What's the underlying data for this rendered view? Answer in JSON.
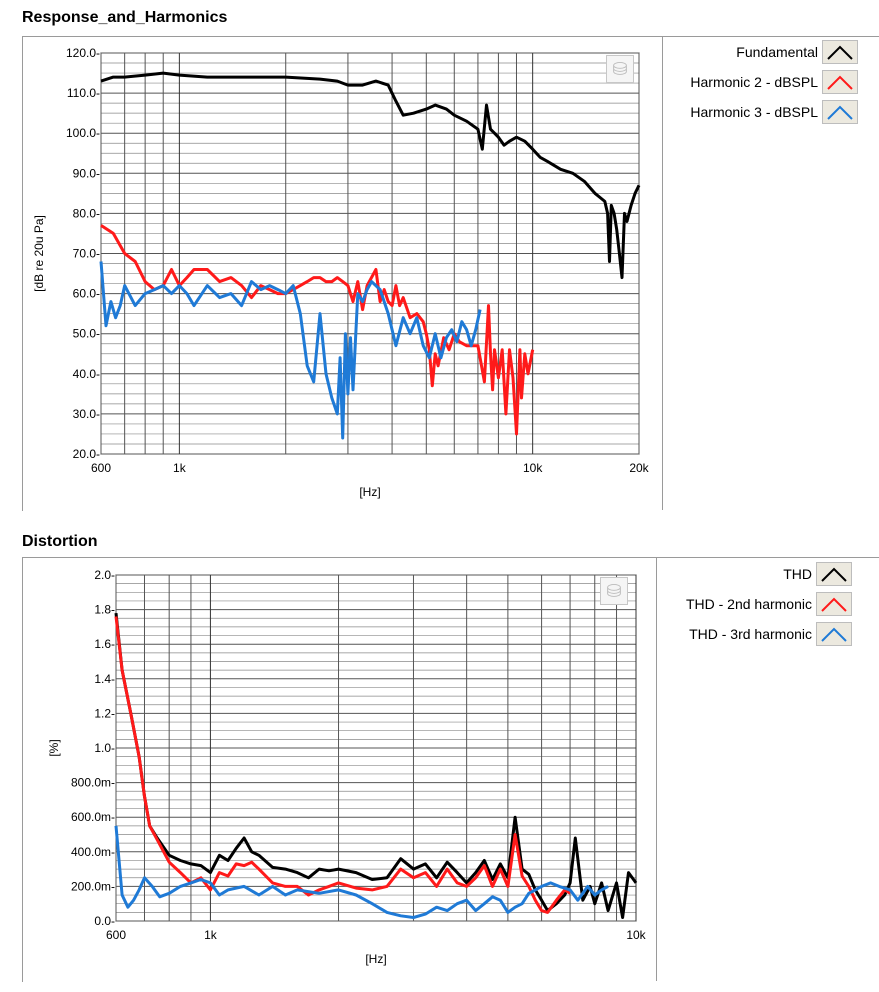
{
  "charts": [
    {
      "title": "Response_and_Harmonics",
      "type": "line",
      "xlabel": "[Hz]",
      "ylabel": "[dB re 20u Pa]",
      "x_scale": "log",
      "xlim": [
        600,
        20000
      ],
      "ylim": [
        20,
        120
      ],
      "x_ticks": [
        600,
        1000,
        10000,
        20000
      ],
      "x_tick_labels": [
        "600",
        "1k",
        "10k",
        "20k"
      ],
      "y_ticks": [
        20,
        30,
        40,
        50,
        60,
        70,
        80,
        90,
        100,
        110,
        120
      ],
      "y_tick_labels": [
        "20.0-",
        "30.0-",
        "40.0-",
        "50.0-",
        "60.0-",
        "70.0-",
        "80.0-",
        "90.0-",
        "100.0-",
        "110.0-",
        "120.0-"
      ],
      "grid": true,
      "legend_position": "right",
      "series": [
        {
          "name": "Fundamental",
          "color": "#000000",
          "x": [
            600,
            650,
            700,
            800,
            900,
            1000,
            1200,
            1500,
            2000,
            2500,
            2800,
            3000,
            3300,
            3600,
            3900,
            4100,
            4300,
            4600,
            5000,
            5300,
            5700,
            6000,
            6500,
            7000,
            7200,
            7400,
            7500,
            7600,
            7800,
            8000,
            8300,
            8600,
            9000,
            9500,
            10000,
            10500,
            11000,
            12000,
            13000,
            14000,
            15000,
            15500,
            16000,
            16300,
            16500,
            16700,
            17000,
            17300,
            17600,
            17900,
            18200,
            18500,
            19000,
            19500,
            20000
          ],
          "y": [
            113,
            114,
            114,
            114.5,
            115,
            114.5,
            114,
            114,
            114,
            113.5,
            113,
            112,
            112,
            113,
            112,
            108,
            104.5,
            105,
            106,
            107,
            106,
            104.5,
            103,
            101,
            96,
            107,
            104,
            101,
            100,
            99,
            97,
            98,
            99,
            98,
            96,
            94,
            93,
            91,
            90,
            88,
            85,
            84,
            83,
            80,
            68,
            82,
            80,
            76,
            70,
            64,
            80,
            78,
            82,
            85,
            87
          ]
        },
        {
          "name": "Harmonic 2 - dBSPL",
          "color": "#ff1a1a",
          "x": [
            600,
            650,
            700,
            750,
            800,
            850,
            900,
            950,
            1000,
            1050,
            1100,
            1200,
            1300,
            1400,
            1500,
            1600,
            1700,
            1800,
            1900,
            2000,
            2100,
            2200,
            2300,
            2400,
            2500,
            2600,
            2700,
            2800,
            2900,
            3000,
            3100,
            3200,
            3300,
            3400,
            3600,
            3700,
            3800,
            3900,
            4000,
            4100,
            4200,
            4300,
            4500,
            4700,
            4900,
            5000,
            5100,
            5200,
            5300,
            5400,
            5600,
            5800,
            6000,
            6200,
            6500,
            7000,
            7300,
            7500,
            7600,
            7700,
            7800,
            8000,
            8200,
            8400,
            8600,
            8800,
            9000,
            9200,
            9300,
            9500,
            9700,
            10000
          ],
          "y": [
            77,
            75,
            70,
            68,
            63,
            61,
            62,
            66,
            62,
            64,
            66,
            66,
            63,
            64,
            62,
            59,
            62,
            61,
            60,
            60,
            61,
            62,
            63,
            64,
            64,
            63,
            63,
            64,
            63,
            62,
            58,
            63,
            56,
            62,
            66,
            58,
            61,
            58,
            57,
            62,
            57,
            59,
            54,
            55,
            53,
            50,
            46,
            37,
            45,
            42,
            49,
            46,
            50,
            48,
            47,
            47,
            38,
            57,
            45,
            36,
            46,
            39,
            46,
            30,
            46,
            39,
            25,
            46,
            34,
            45,
            40,
            46
          ]
        },
        {
          "name": "Harmonic 3 - dBSPL",
          "color": "#1f7ad6",
          "x": [
            600,
            620,
            640,
            660,
            680,
            700,
            750,
            800,
            850,
            900,
            950,
            1000,
            1050,
            1100,
            1200,
            1300,
            1400,
            1500,
            1600,
            1700,
            1800,
            1900,
            2000,
            2100,
            2200,
            2300,
            2400,
            2500,
            2600,
            2700,
            2800,
            2850,
            2900,
            2950,
            3000,
            3050,
            3100,
            3150,
            3200,
            3300,
            3400,
            3500,
            3700,
            3900,
            4100,
            4300,
            4500,
            4700,
            4900,
            5100,
            5300,
            5500,
            5700,
            5900,
            6100,
            6300,
            6500,
            6700,
            6900,
            7100
          ],
          "y": [
            68,
            52,
            58,
            54,
            57,
            62,
            57,
            60,
            61,
            62,
            60,
            62,
            60,
            57,
            62,
            59,
            60,
            57,
            63,
            61,
            62,
            61,
            60,
            62,
            55,
            42,
            38,
            55,
            40,
            34,
            30,
            44,
            24,
            50,
            35,
            49,
            36,
            48,
            60,
            58,
            61,
            63,
            61,
            55,
            47,
            54,
            50,
            54,
            47,
            44,
            50,
            44,
            49,
            51,
            48,
            53,
            51,
            47,
            51,
            56
          ]
        }
      ]
    },
    {
      "title": "Distortion",
      "type": "line",
      "xlabel": "[Hz]",
      "ylabel": "[%]",
      "x_scale": "log",
      "xlim": [
        600,
        10000
      ],
      "ylim": [
        0,
        2.0
      ],
      "x_ticks": [
        600,
        1000,
        10000
      ],
      "x_tick_labels": [
        "600",
        "1k",
        "10k"
      ],
      "y_ticks": [
        0,
        0.2,
        0.4,
        0.6,
        0.8,
        1.0,
        1.2,
        1.4,
        1.6,
        1.8,
        2.0
      ],
      "y_tick_labels": [
        "0.0-",
        "200.0m-",
        "400.0m-",
        "600.0m-",
        "800.0m-",
        "1.0-",
        "1.2-",
        "1.4-",
        "1.6-",
        "1.8-",
        "2.0-"
      ],
      "grid": true,
      "legend_position": "right",
      "series": [
        {
          "name": "THD",
          "color": "#000000",
          "x": [
            600,
            620,
            650,
            680,
            700,
            720,
            750,
            800,
            850,
            900,
            950,
            1000,
            1050,
            1100,
            1150,
            1200,
            1250,
            1300,
            1400,
            1500,
            1600,
            1700,
            1800,
            1900,
            2000,
            2200,
            2400,
            2600,
            2800,
            3000,
            3200,
            3400,
            3600,
            3800,
            4000,
            4200,
            4400,
            4600,
            4800,
            5000,
            5200,
            5400,
            5600,
            5800,
            6000,
            6200,
            6500,
            6800,
            7000,
            7200,
            7500,
            7800,
            8000,
            8300,
            8600,
            9000,
            9300,
            9600,
            10000
          ],
          "y": [
            1.78,
            1.45,
            1.2,
            0.95,
            0.72,
            0.55,
            0.48,
            0.38,
            0.35,
            0.33,
            0.32,
            0.28,
            0.38,
            0.35,
            0.42,
            0.48,
            0.4,
            0.38,
            0.31,
            0.3,
            0.28,
            0.25,
            0.3,
            0.29,
            0.3,
            0.28,
            0.24,
            0.25,
            0.36,
            0.3,
            0.33,
            0.25,
            0.34,
            0.28,
            0.22,
            0.28,
            0.35,
            0.24,
            0.33,
            0.25,
            0.6,
            0.3,
            0.27,
            0.18,
            0.12,
            0.06,
            0.1,
            0.15,
            0.22,
            0.48,
            0.12,
            0.2,
            0.1,
            0.22,
            0.06,
            0.22,
            0.02,
            0.28,
            0.22
          ]
        },
        {
          "name": "THD - 2nd harmonic",
          "color": "#ff1a1a",
          "x": [
            600,
            620,
            650,
            680,
            700,
            720,
            750,
            800,
            850,
            900,
            950,
            1000,
            1050,
            1100,
            1150,
            1200,
            1250,
            1300,
            1400,
            1500,
            1600,
            1700,
            1800,
            1900,
            2000,
            2200,
            2400,
            2600,
            2800,
            3000,
            3200,
            3400,
            3600,
            3800,
            4000,
            4200,
            4400,
            4600,
            4800,
            5000,
            5200,
            5400,
            5600,
            5800,
            6000,
            6200,
            6500,
            6800,
            7000
          ],
          "y": [
            1.76,
            1.45,
            1.2,
            0.95,
            0.72,
            0.55,
            0.47,
            0.34,
            0.28,
            0.22,
            0.25,
            0.18,
            0.28,
            0.26,
            0.33,
            0.32,
            0.34,
            0.3,
            0.22,
            0.2,
            0.2,
            0.15,
            0.18,
            0.2,
            0.22,
            0.19,
            0.18,
            0.2,
            0.3,
            0.25,
            0.28,
            0.2,
            0.3,
            0.22,
            0.2,
            0.25,
            0.32,
            0.2,
            0.3,
            0.2,
            0.5,
            0.26,
            0.2,
            0.12,
            0.06,
            0.05,
            0.12,
            0.18,
            0.16
          ]
        },
        {
          "name": "THD - 3rd harmonic",
          "color": "#1f7ad6",
          "x": [
            600,
            620,
            640,
            660,
            680,
            700,
            730,
            760,
            800,
            850,
            900,
            950,
            1000,
            1050,
            1100,
            1200,
            1300,
            1400,
            1500,
            1600,
            1800,
            2000,
            2200,
            2400,
            2600,
            2800,
            3000,
            3200,
            3400,
            3600,
            3800,
            4000,
            4200,
            4400,
            4600,
            4800,
            5000,
            5200,
            5400,
            5600,
            5800,
            6000,
            6300,
            6600,
            7000,
            7300,
            7700,
            8000,
            8300,
            8600
          ],
          "y": [
            0.55,
            0.15,
            0.08,
            0.12,
            0.18,
            0.25,
            0.2,
            0.14,
            0.16,
            0.2,
            0.22,
            0.24,
            0.22,
            0.15,
            0.18,
            0.2,
            0.15,
            0.2,
            0.15,
            0.18,
            0.16,
            0.18,
            0.15,
            0.1,
            0.05,
            0.03,
            0.02,
            0.04,
            0.08,
            0.06,
            0.1,
            0.12,
            0.06,
            0.1,
            0.14,
            0.12,
            0.05,
            0.08,
            0.1,
            0.16,
            0.18,
            0.2,
            0.22,
            0.2,
            0.18,
            0.12,
            0.2,
            0.15,
            0.18,
            0.2
          ]
        }
      ]
    }
  ],
  "chart_data": [
    {
      "ref": 0
    },
    {
      "ref": 1
    }
  ]
}
